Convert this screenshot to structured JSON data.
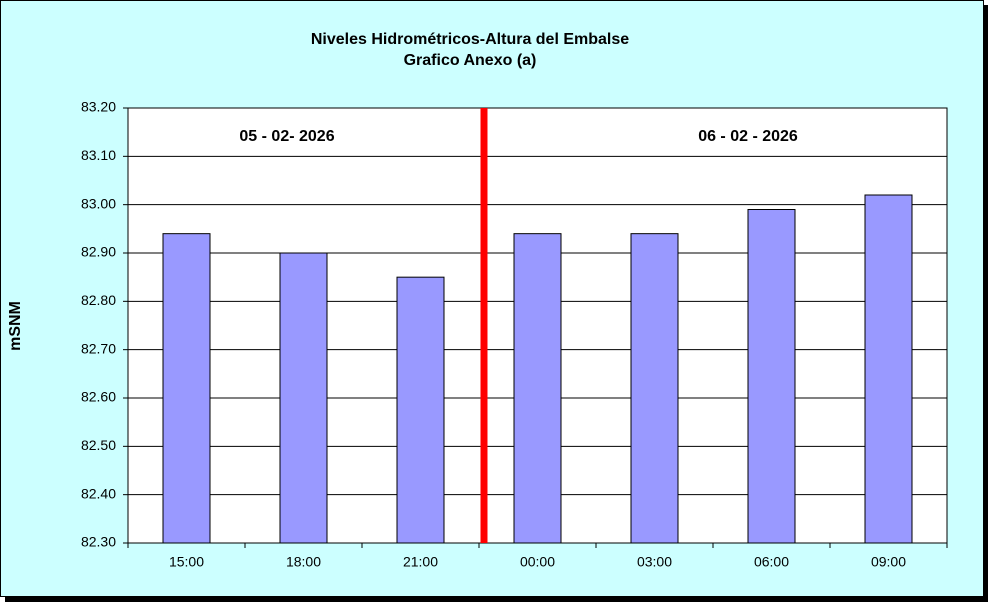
{
  "chart_data": {
    "type": "bar",
    "title": "Niveles Hidrométricos-Altura del Embalse",
    "subtitle": "Grafico Anexo (a)",
    "y_label": "mSNM",
    "annotations": [
      "05 - 02- 2026",
      "06 - 02 - 2026"
    ],
    "categories": [
      "15:00",
      "18:00",
      "21:00",
      "00:00",
      "03:00",
      "06:00",
      "09:00"
    ],
    "values": [
      82.94,
      82.9,
      82.85,
      82.94,
      82.94,
      82.99,
      83.02
    ],
    "color": "#9999ff",
    "ylim": [
      82.3,
      83.2
    ],
    "yticks": [
      {
        "value": 82.3,
        "label": "82.30"
      },
      {
        "value": 82.4,
        "label": "82.40"
      },
      {
        "value": 82.5,
        "label": "82.50"
      },
      {
        "value": 82.6,
        "label": "82.60"
      },
      {
        "value": 82.7,
        "label": "82.70"
      },
      {
        "value": 82.8,
        "label": "82.80"
      },
      {
        "value": 82.9,
        "label": "82.90"
      },
      {
        "value": 83.0,
        "label": "83.00"
      },
      {
        "value": 83.1,
        "label": "83.10"
      },
      {
        "value": 83.2,
        "label": "83.20"
      }
    ],
    "grid": true
  }
}
